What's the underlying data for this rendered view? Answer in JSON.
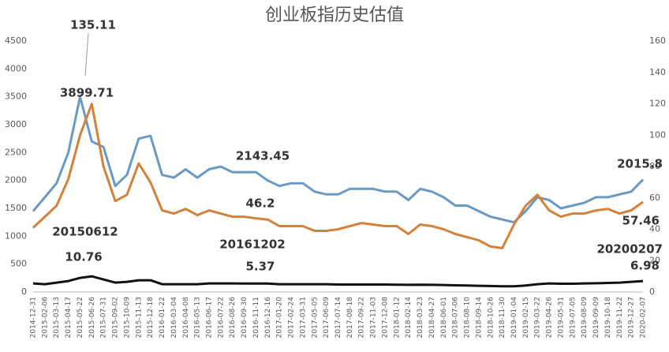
{
  "chart_data": {
    "type": "line",
    "title": "创业板指历史估值",
    "categories": [
      "2014-12-31",
      "2015-02-06",
      "2015-03-13",
      "2015-04-17",
      "2015-05-22",
      "2015-06-26",
      "2015-07-31",
      "2015-09-02",
      "2015-10-09",
      "2015-11-13",
      "2015-12-18",
      "2016-01-22",
      "2016-03-04",
      "2016-04-08",
      "2016-05-13",
      "2016-06-17",
      "2016-07-22",
      "2016-08-26",
      "2016-09-30",
      "2016-11-11",
      "2016-12-16",
      "2017-01-20",
      "2017-02-24",
      "2017-03-31",
      "2017-05-05",
      "2017-06-09",
      "2017-07-14",
      "2017-08-18",
      "2017-09-22",
      "2017-11-03",
      "2017-12-08",
      "2018-01-12",
      "2018-02-14",
      "2018-03-23",
      "2018-04-27",
      "2018-06-01",
      "2018-07-06",
      "2018-08-10",
      "2018-09-14",
      "2018-10-26",
      "2018-11-30",
      "2019-01-04",
      "2019-02-15",
      "2019-03-22",
      "2019-04-26",
      "2019-05-31",
      "2019-07-05",
      "2019-08-09",
      "2019-09-09",
      "2019-10-18",
      "2019-11-22",
      "2019-12-27",
      "2020-02-07"
    ],
    "series": [
      {
        "color": "#6a9ac4",
        "values": [
          1450,
          1700,
          1950,
          2500,
          3500,
          2700,
          2600,
          1900,
          2100,
          2750,
          2800,
          2100,
          2050,
          2200,
          2050,
          2200,
          2250,
          2150,
          2150,
          2150,
          2000,
          1900,
          1950,
          1950,
          1800,
          1750,
          1750,
          1850,
          1850,
          1850,
          1800,
          1800,
          1650,
          1850,
          1800,
          1700,
          1550,
          1550,
          1450,
          1350,
          1300,
          1250,
          1450,
          1700,
          1650,
          1500,
          1550,
          1600,
          1700,
          1700,
          1750,
          1800,
          2015.8
        ]
      },
      {
        "color": "#d4813a",
        "axis": "y2",
        "values": [
          41,
          48,
          55,
          72,
          100,
          120,
          80,
          58,
          62,
          82,
          70,
          52,
          50,
          53,
          49,
          52,
          50,
          48,
          48,
          47,
          46.2,
          42,
          42,
          42,
          39,
          39,
          40,
          42,
          44,
          43,
          42,
          42,
          37,
          43,
          42,
          40,
          37,
          35,
          33,
          29,
          28,
          43,
          55,
          62,
          52,
          48,
          50,
          50,
          52,
          53,
          50,
          52,
          57.46
        ]
      },
      {
        "color": "#111111",
        "axis": "y2",
        "values": [
          5.5,
          5,
          6,
          7,
          9,
          10,
          8,
          6,
          6.5,
          7.5,
          7.5,
          5,
          5,
          5,
          5,
          5.5,
          5.5,
          5.5,
          5.4,
          5.4,
          5.37,
          5,
          5,
          5,
          5,
          5,
          4.8,
          4.8,
          4.8,
          4.8,
          4.8,
          4.7,
          4.6,
          4.7,
          4.6,
          4.5,
          4.3,
          4.2,
          4.0,
          3.8,
          3.6,
          3.6,
          4.2,
          5.0,
          5.5,
          5.3,
          5.3,
          5.5,
          5.6,
          5.8,
          6.0,
          6.5,
          6.98
        ]
      }
    ],
    "ylim": [
      0,
      4500
    ],
    "yticks": [
      0,
      500,
      1000,
      1500,
      2000,
      2500,
      3000,
      3500,
      4000,
      4500
    ],
    "y2lim": [
      0,
      160
    ],
    "y2ticks": [
      0,
      20,
      40,
      60,
      80,
      100,
      120,
      140,
      160
    ],
    "grid": false,
    "annotations": [
      "135.11",
      "3899.71",
      "20150612",
      "10.76",
      "2143.45",
      "46.2",
      "20161202",
      "5.37",
      "2015.8",
      "57.46",
      "20200207",
      "6.98"
    ]
  }
}
